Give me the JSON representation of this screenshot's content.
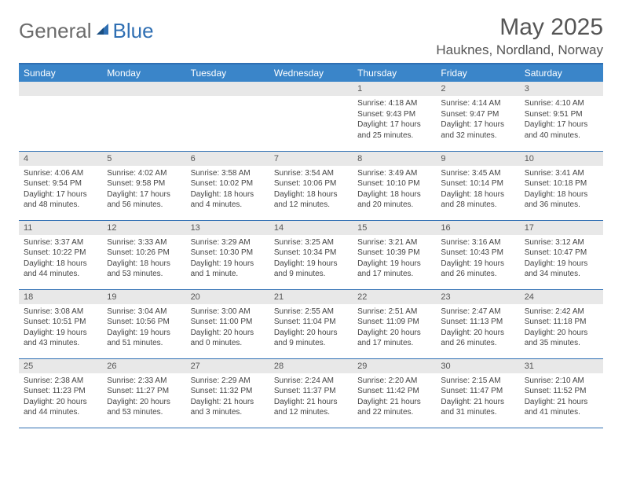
{
  "logo": {
    "general": "General",
    "blue": "Blue"
  },
  "title": "May 2025",
  "location": "Hauknes, Nordland, Norway",
  "columns": [
    "Sunday",
    "Monday",
    "Tuesday",
    "Wednesday",
    "Thursday",
    "Friday",
    "Saturday"
  ],
  "colors": {
    "header_bg": "#3a85c9",
    "border": "#2f6fb3",
    "daynum_bg": "#e8e8e8",
    "text": "#555555"
  },
  "weeks": [
    [
      null,
      null,
      null,
      null,
      {
        "n": "1",
        "sr": "Sunrise: 4:18 AM",
        "ss": "Sunset: 9:43 PM",
        "dl": "Daylight: 17 hours and 25 minutes."
      },
      {
        "n": "2",
        "sr": "Sunrise: 4:14 AM",
        "ss": "Sunset: 9:47 PM",
        "dl": "Daylight: 17 hours and 32 minutes."
      },
      {
        "n": "3",
        "sr": "Sunrise: 4:10 AM",
        "ss": "Sunset: 9:51 PM",
        "dl": "Daylight: 17 hours and 40 minutes."
      }
    ],
    [
      {
        "n": "4",
        "sr": "Sunrise: 4:06 AM",
        "ss": "Sunset: 9:54 PM",
        "dl": "Daylight: 17 hours and 48 minutes."
      },
      {
        "n": "5",
        "sr": "Sunrise: 4:02 AM",
        "ss": "Sunset: 9:58 PM",
        "dl": "Daylight: 17 hours and 56 minutes."
      },
      {
        "n": "6",
        "sr": "Sunrise: 3:58 AM",
        "ss": "Sunset: 10:02 PM",
        "dl": "Daylight: 18 hours and 4 minutes."
      },
      {
        "n": "7",
        "sr": "Sunrise: 3:54 AM",
        "ss": "Sunset: 10:06 PM",
        "dl": "Daylight: 18 hours and 12 minutes."
      },
      {
        "n": "8",
        "sr": "Sunrise: 3:49 AM",
        "ss": "Sunset: 10:10 PM",
        "dl": "Daylight: 18 hours and 20 minutes."
      },
      {
        "n": "9",
        "sr": "Sunrise: 3:45 AM",
        "ss": "Sunset: 10:14 PM",
        "dl": "Daylight: 18 hours and 28 minutes."
      },
      {
        "n": "10",
        "sr": "Sunrise: 3:41 AM",
        "ss": "Sunset: 10:18 PM",
        "dl": "Daylight: 18 hours and 36 minutes."
      }
    ],
    [
      {
        "n": "11",
        "sr": "Sunrise: 3:37 AM",
        "ss": "Sunset: 10:22 PM",
        "dl": "Daylight: 18 hours and 44 minutes."
      },
      {
        "n": "12",
        "sr": "Sunrise: 3:33 AM",
        "ss": "Sunset: 10:26 PM",
        "dl": "Daylight: 18 hours and 53 minutes."
      },
      {
        "n": "13",
        "sr": "Sunrise: 3:29 AM",
        "ss": "Sunset: 10:30 PM",
        "dl": "Daylight: 19 hours and 1 minute."
      },
      {
        "n": "14",
        "sr": "Sunrise: 3:25 AM",
        "ss": "Sunset: 10:34 PM",
        "dl": "Daylight: 19 hours and 9 minutes."
      },
      {
        "n": "15",
        "sr": "Sunrise: 3:21 AM",
        "ss": "Sunset: 10:39 PM",
        "dl": "Daylight: 19 hours and 17 minutes."
      },
      {
        "n": "16",
        "sr": "Sunrise: 3:16 AM",
        "ss": "Sunset: 10:43 PM",
        "dl": "Daylight: 19 hours and 26 minutes."
      },
      {
        "n": "17",
        "sr": "Sunrise: 3:12 AM",
        "ss": "Sunset: 10:47 PM",
        "dl": "Daylight: 19 hours and 34 minutes."
      }
    ],
    [
      {
        "n": "18",
        "sr": "Sunrise: 3:08 AM",
        "ss": "Sunset: 10:51 PM",
        "dl": "Daylight: 19 hours and 43 minutes."
      },
      {
        "n": "19",
        "sr": "Sunrise: 3:04 AM",
        "ss": "Sunset: 10:56 PM",
        "dl": "Daylight: 19 hours and 51 minutes."
      },
      {
        "n": "20",
        "sr": "Sunrise: 3:00 AM",
        "ss": "Sunset: 11:00 PM",
        "dl": "Daylight: 20 hours and 0 minutes."
      },
      {
        "n": "21",
        "sr": "Sunrise: 2:55 AM",
        "ss": "Sunset: 11:04 PM",
        "dl": "Daylight: 20 hours and 9 minutes."
      },
      {
        "n": "22",
        "sr": "Sunrise: 2:51 AM",
        "ss": "Sunset: 11:09 PM",
        "dl": "Daylight: 20 hours and 17 minutes."
      },
      {
        "n": "23",
        "sr": "Sunrise: 2:47 AM",
        "ss": "Sunset: 11:13 PM",
        "dl": "Daylight: 20 hours and 26 minutes."
      },
      {
        "n": "24",
        "sr": "Sunrise: 2:42 AM",
        "ss": "Sunset: 11:18 PM",
        "dl": "Daylight: 20 hours and 35 minutes."
      }
    ],
    [
      {
        "n": "25",
        "sr": "Sunrise: 2:38 AM",
        "ss": "Sunset: 11:23 PM",
        "dl": "Daylight: 20 hours and 44 minutes."
      },
      {
        "n": "26",
        "sr": "Sunrise: 2:33 AM",
        "ss": "Sunset: 11:27 PM",
        "dl": "Daylight: 20 hours and 53 minutes."
      },
      {
        "n": "27",
        "sr": "Sunrise: 2:29 AM",
        "ss": "Sunset: 11:32 PM",
        "dl": "Daylight: 21 hours and 3 minutes."
      },
      {
        "n": "28",
        "sr": "Sunrise: 2:24 AM",
        "ss": "Sunset: 11:37 PM",
        "dl": "Daylight: 21 hours and 12 minutes."
      },
      {
        "n": "29",
        "sr": "Sunrise: 2:20 AM",
        "ss": "Sunset: 11:42 PM",
        "dl": "Daylight: 21 hours and 22 minutes."
      },
      {
        "n": "30",
        "sr": "Sunrise: 2:15 AM",
        "ss": "Sunset: 11:47 PM",
        "dl": "Daylight: 21 hours and 31 minutes."
      },
      {
        "n": "31",
        "sr": "Sunrise: 2:10 AM",
        "ss": "Sunset: 11:52 PM",
        "dl": "Daylight: 21 hours and 41 minutes."
      }
    ]
  ]
}
